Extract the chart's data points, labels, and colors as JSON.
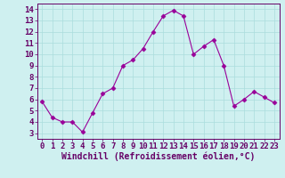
{
  "x": [
    0,
    1,
    2,
    3,
    4,
    5,
    6,
    7,
    8,
    9,
    10,
    11,
    12,
    13,
    14,
    15,
    16,
    17,
    18,
    19,
    20,
    21,
    22,
    23
  ],
  "y": [
    5.8,
    4.4,
    4.0,
    4.0,
    3.1,
    4.8,
    6.5,
    7.0,
    9.0,
    9.5,
    10.5,
    12.0,
    13.4,
    13.9,
    13.4,
    10.0,
    10.7,
    11.3,
    9.0,
    5.4,
    6.0,
    6.7,
    6.2,
    5.7
  ],
  "line_color": "#990099",
  "marker": "D",
  "marker_size": 2.5,
  "bg_color": "#cff0f0",
  "grid_color": "#aadddd",
  "xlabel": "Windchill (Refroidissement éolien,°C)",
  "xlabel_fontsize": 7,
  "xlim": [
    -0.5,
    23.5
  ],
  "ylim": [
    2.5,
    14.5
  ],
  "yticks": [
    3,
    4,
    5,
    6,
    7,
    8,
    9,
    10,
    11,
    12,
    13,
    14
  ],
  "xticks": [
    0,
    1,
    2,
    3,
    4,
    5,
    6,
    7,
    8,
    9,
    10,
    11,
    12,
    13,
    14,
    15,
    16,
    17,
    18,
    19,
    20,
    21,
    22,
    23
  ],
  "tick_fontsize": 6.5,
  "axis_color": "#660066",
  "spine_color": "#660066",
  "line_width": 0.8
}
